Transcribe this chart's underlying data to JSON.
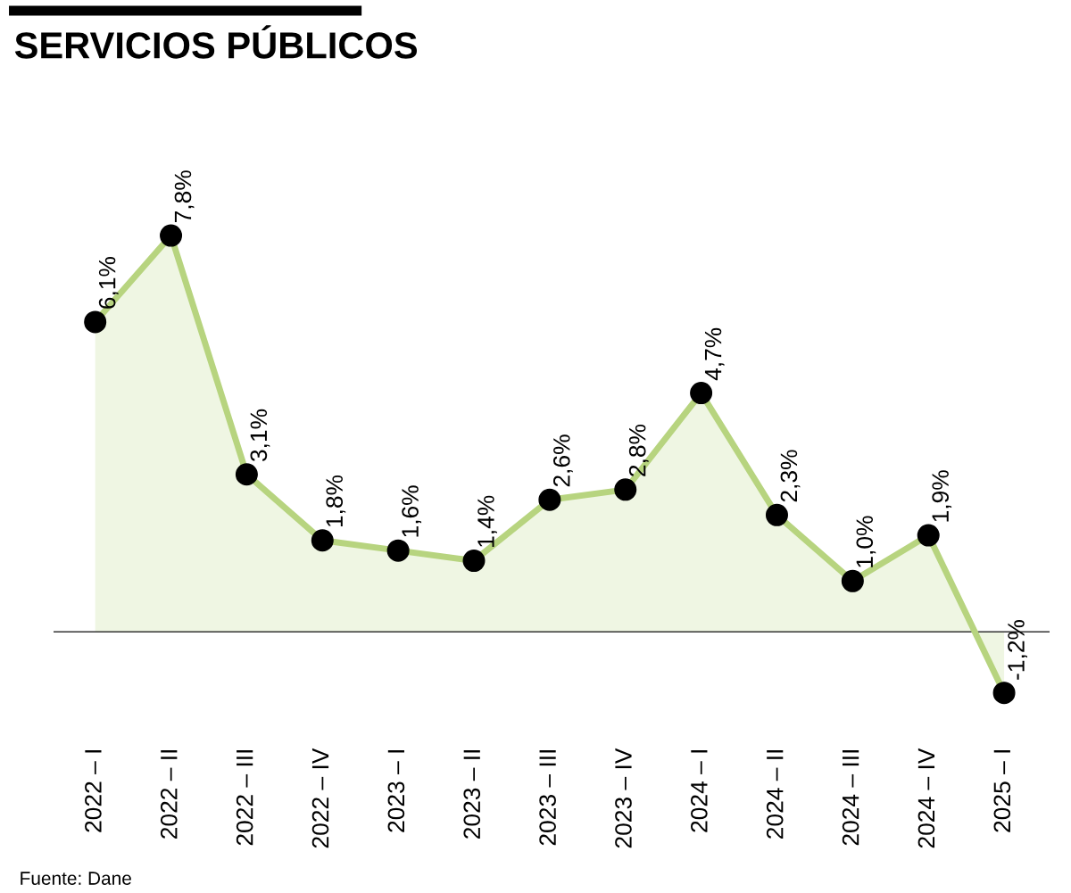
{
  "chart_data": {
    "type": "area",
    "title": "SERVICIOS PÚBLICOS",
    "categories": [
      "2022 – I",
      "2022 – II",
      "2022 – III",
      "2022 – IV",
      "2023 – I",
      "2023 – II",
      "2023 – III",
      "2023 – IV",
      "2024 – I",
      "2024 – II",
      "2024 – III",
      "2024 – IV",
      "2025 – I"
    ],
    "series": [
      {
        "color": "#b7d47f",
        "values": [
          6.1,
          7.8,
          3.1,
          1.8,
          1.6,
          1.4,
          2.6,
          2.8,
          4.7,
          2.3,
          1.0,
          1.9,
          -1.2
        ],
        "value_labels": [
          "6,1%",
          "7,8%",
          "3,1%",
          "1,8%",
          "1,6%",
          "1,4%",
          "2,6%",
          "2,8%",
          "4,7%",
          "2,3%",
          "1,0%",
          "1,9%",
          "-1,2%"
        ]
      }
    ],
    "marker": "circle",
    "grid": false,
    "legend": false,
    "ref_lines": [
      {
        "axis": "y",
        "value": 0,
        "color": "#333333"
      }
    ],
    "annotations": [
      "Fuente: Dane"
    ]
  }
}
